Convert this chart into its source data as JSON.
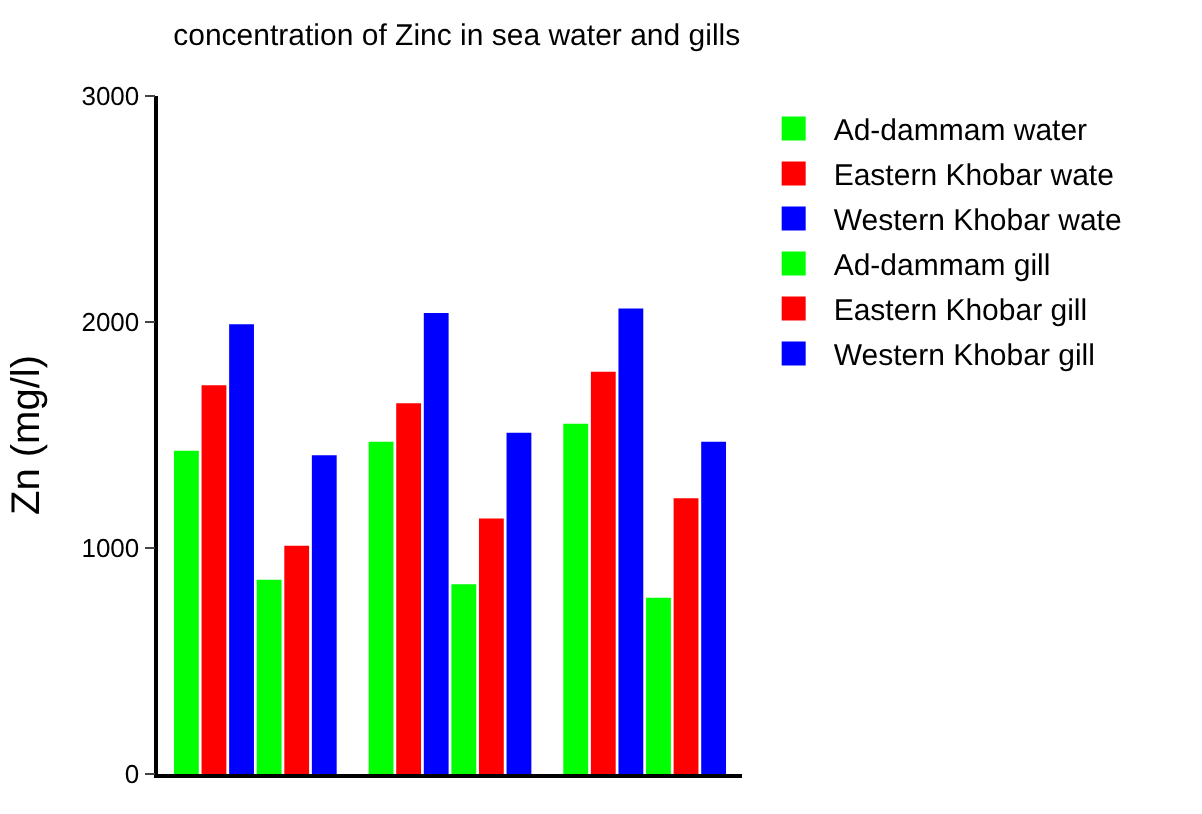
{
  "chart_data": {
    "type": "bar",
    "title": "concentration of Zinc in sea water and gills",
    "ylabel": "Zn (mg/l)",
    "categories": [
      null,
      null,
      null
    ],
    "series": [
      {
        "name": "Ad-dammam water",
        "color": "#00ff00",
        "values": [
          1430,
          1470,
          1550
        ]
      },
      {
        "name": "Eastern Khobar wate",
        "color": "#ff0000",
        "values": [
          1720,
          1640,
          1780
        ]
      },
      {
        "name": "Western Khobar wate",
        "color": "#0000ff",
        "values": [
          1990,
          2040,
          2060
        ]
      },
      {
        "name": "Ad-dammam gill",
        "color": "#00ff00",
        "values": [
          860,
          840,
          780
        ]
      },
      {
        "name": "Eastern Khobar gill",
        "color": "#ff0000",
        "values": [
          1010,
          1130,
          1220
        ]
      },
      {
        "name": "Western Khobar gill",
        "color": "#0000ff",
        "values": [
          1410,
          1510,
          1470
        ]
      }
    ],
    "ylim": [
      0,
      3000
    ],
    "yticks": [
      0,
      1000,
      2000,
      3000
    ],
    "legend": "right"
  }
}
